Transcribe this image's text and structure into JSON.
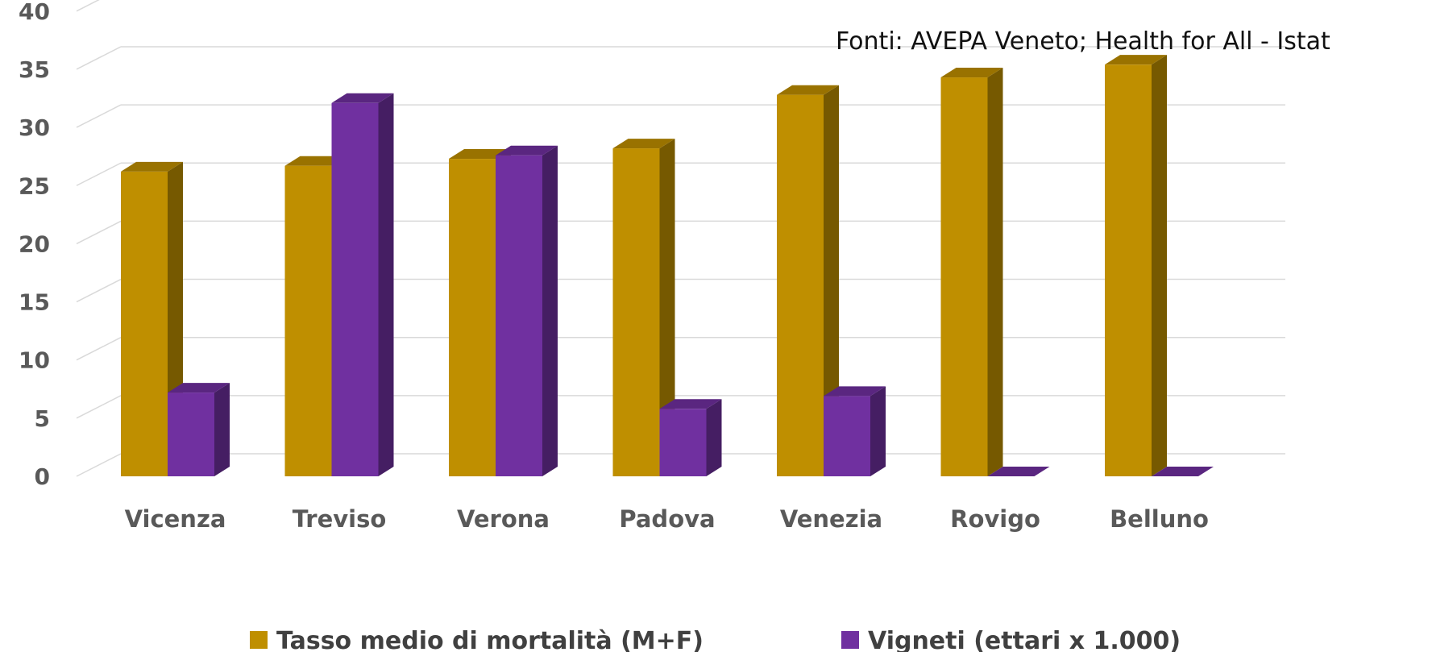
{
  "chart_data": {
    "type": "bar",
    "style": "3d-clustered-column",
    "source_note": "Fonti: AVEPA Veneto; Health for All - Istat",
    "categories": [
      "Vicenza",
      "Treviso",
      "Verona",
      "Padova",
      "Venezia",
      "Rovigo",
      "Belluno"
    ],
    "series": [
      {
        "name": "Tasso medio di mortalità (M+F)",
        "color": "#BF8F00",
        "values": [
          26.2,
          26.7,
          27.3,
          28.2,
          32.8,
          34.3,
          35.4
        ]
      },
      {
        "name": "Vigneti (ettari x 1.000)",
        "color": "#7030A0",
        "values": [
          7.2,
          32.1,
          27.6,
          5.8,
          6.9,
          0,
          0
        ]
      }
    ],
    "yticks": [
      0,
      5,
      10,
      15,
      20,
      25,
      30,
      35,
      40
    ],
    "ylim": [
      0,
      40
    ],
    "grid": true,
    "legend_position": "bottom"
  }
}
